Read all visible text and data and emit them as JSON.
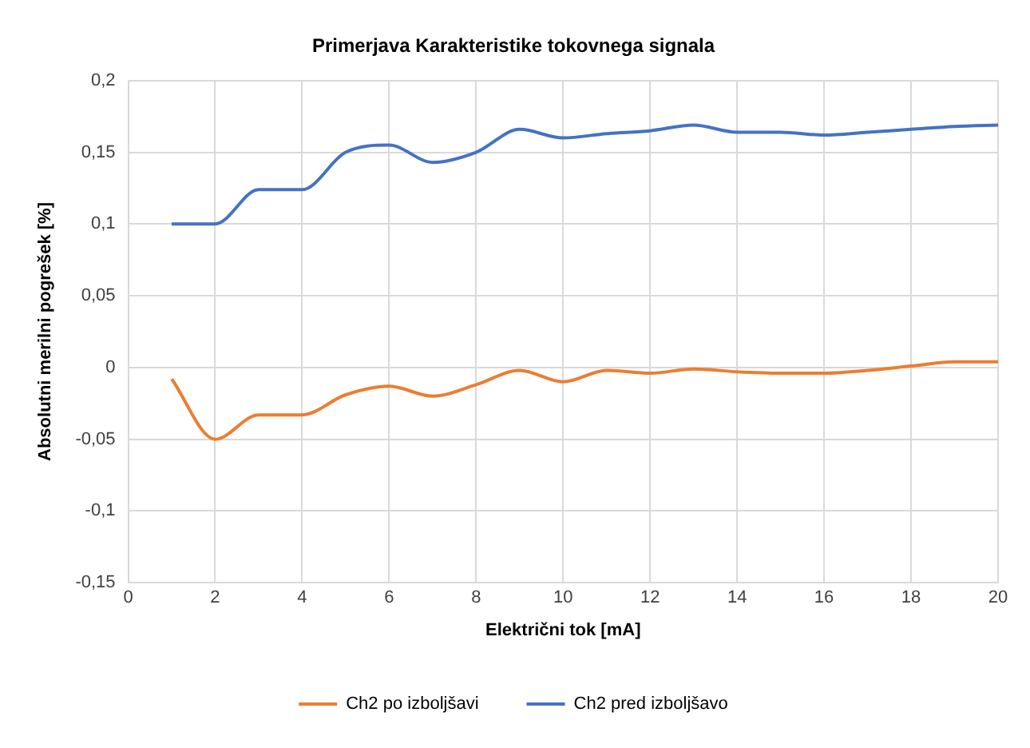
{
  "chart_data": {
    "type": "line",
    "title": "Primerjava Karakteristike tokovnega signala",
    "xlabel": "Električni tok [mA]",
    "ylabel": "Absolutni merilni pogrešek [%]",
    "x": [
      1,
      2,
      3,
      4,
      5,
      6,
      7,
      8,
      9,
      10,
      11,
      12,
      13,
      14,
      15,
      16,
      17,
      18,
      19,
      20
    ],
    "series": [
      {
        "name": "Ch2 po izboljšavi",
        "color": "#ed7d31",
        "values": [
          -0.008,
          -0.05,
          -0.033,
          -0.033,
          -0.019,
          -0.013,
          -0.02,
          -0.012,
          -0.002,
          -0.01,
          -0.002,
          -0.004,
          -0.001,
          -0.003,
          -0.004,
          -0.004,
          -0.002,
          0.001,
          0.004,
          0.004
        ]
      },
      {
        "name": "Ch2 pred izboljšavo",
        "color": "#4472c4",
        "values": [
          0.1,
          0.1,
          0.124,
          0.124,
          0.15,
          0.155,
          0.143,
          0.15,
          0.166,
          0.16,
          0.163,
          0.165,
          0.169,
          0.164,
          0.164,
          0.162,
          0.164,
          0.166,
          0.168,
          0.169
        ]
      }
    ],
    "xlim": [
      0,
      20
    ],
    "xticks": [
      0,
      2,
      4,
      6,
      8,
      10,
      12,
      14,
      16,
      18,
      20
    ],
    "ylim": [
      -0.15,
      0.2
    ],
    "yticks": [
      {
        "value": -0.15,
        "label": "-0,15"
      },
      {
        "value": -0.1,
        "label": "-0,1"
      },
      {
        "value": -0.05,
        "label": "-0,05"
      },
      {
        "value": 0,
        "label": "0"
      },
      {
        "value": 0.05,
        "label": "0,05"
      },
      {
        "value": 0.1,
        "label": "0,1"
      },
      {
        "value": 0.15,
        "label": "0,15"
      },
      {
        "value": 0.2,
        "label": "0,2"
      }
    ],
    "grid": true,
    "legend": "bottom",
    "marker": "none",
    "line_style": "solid"
  }
}
